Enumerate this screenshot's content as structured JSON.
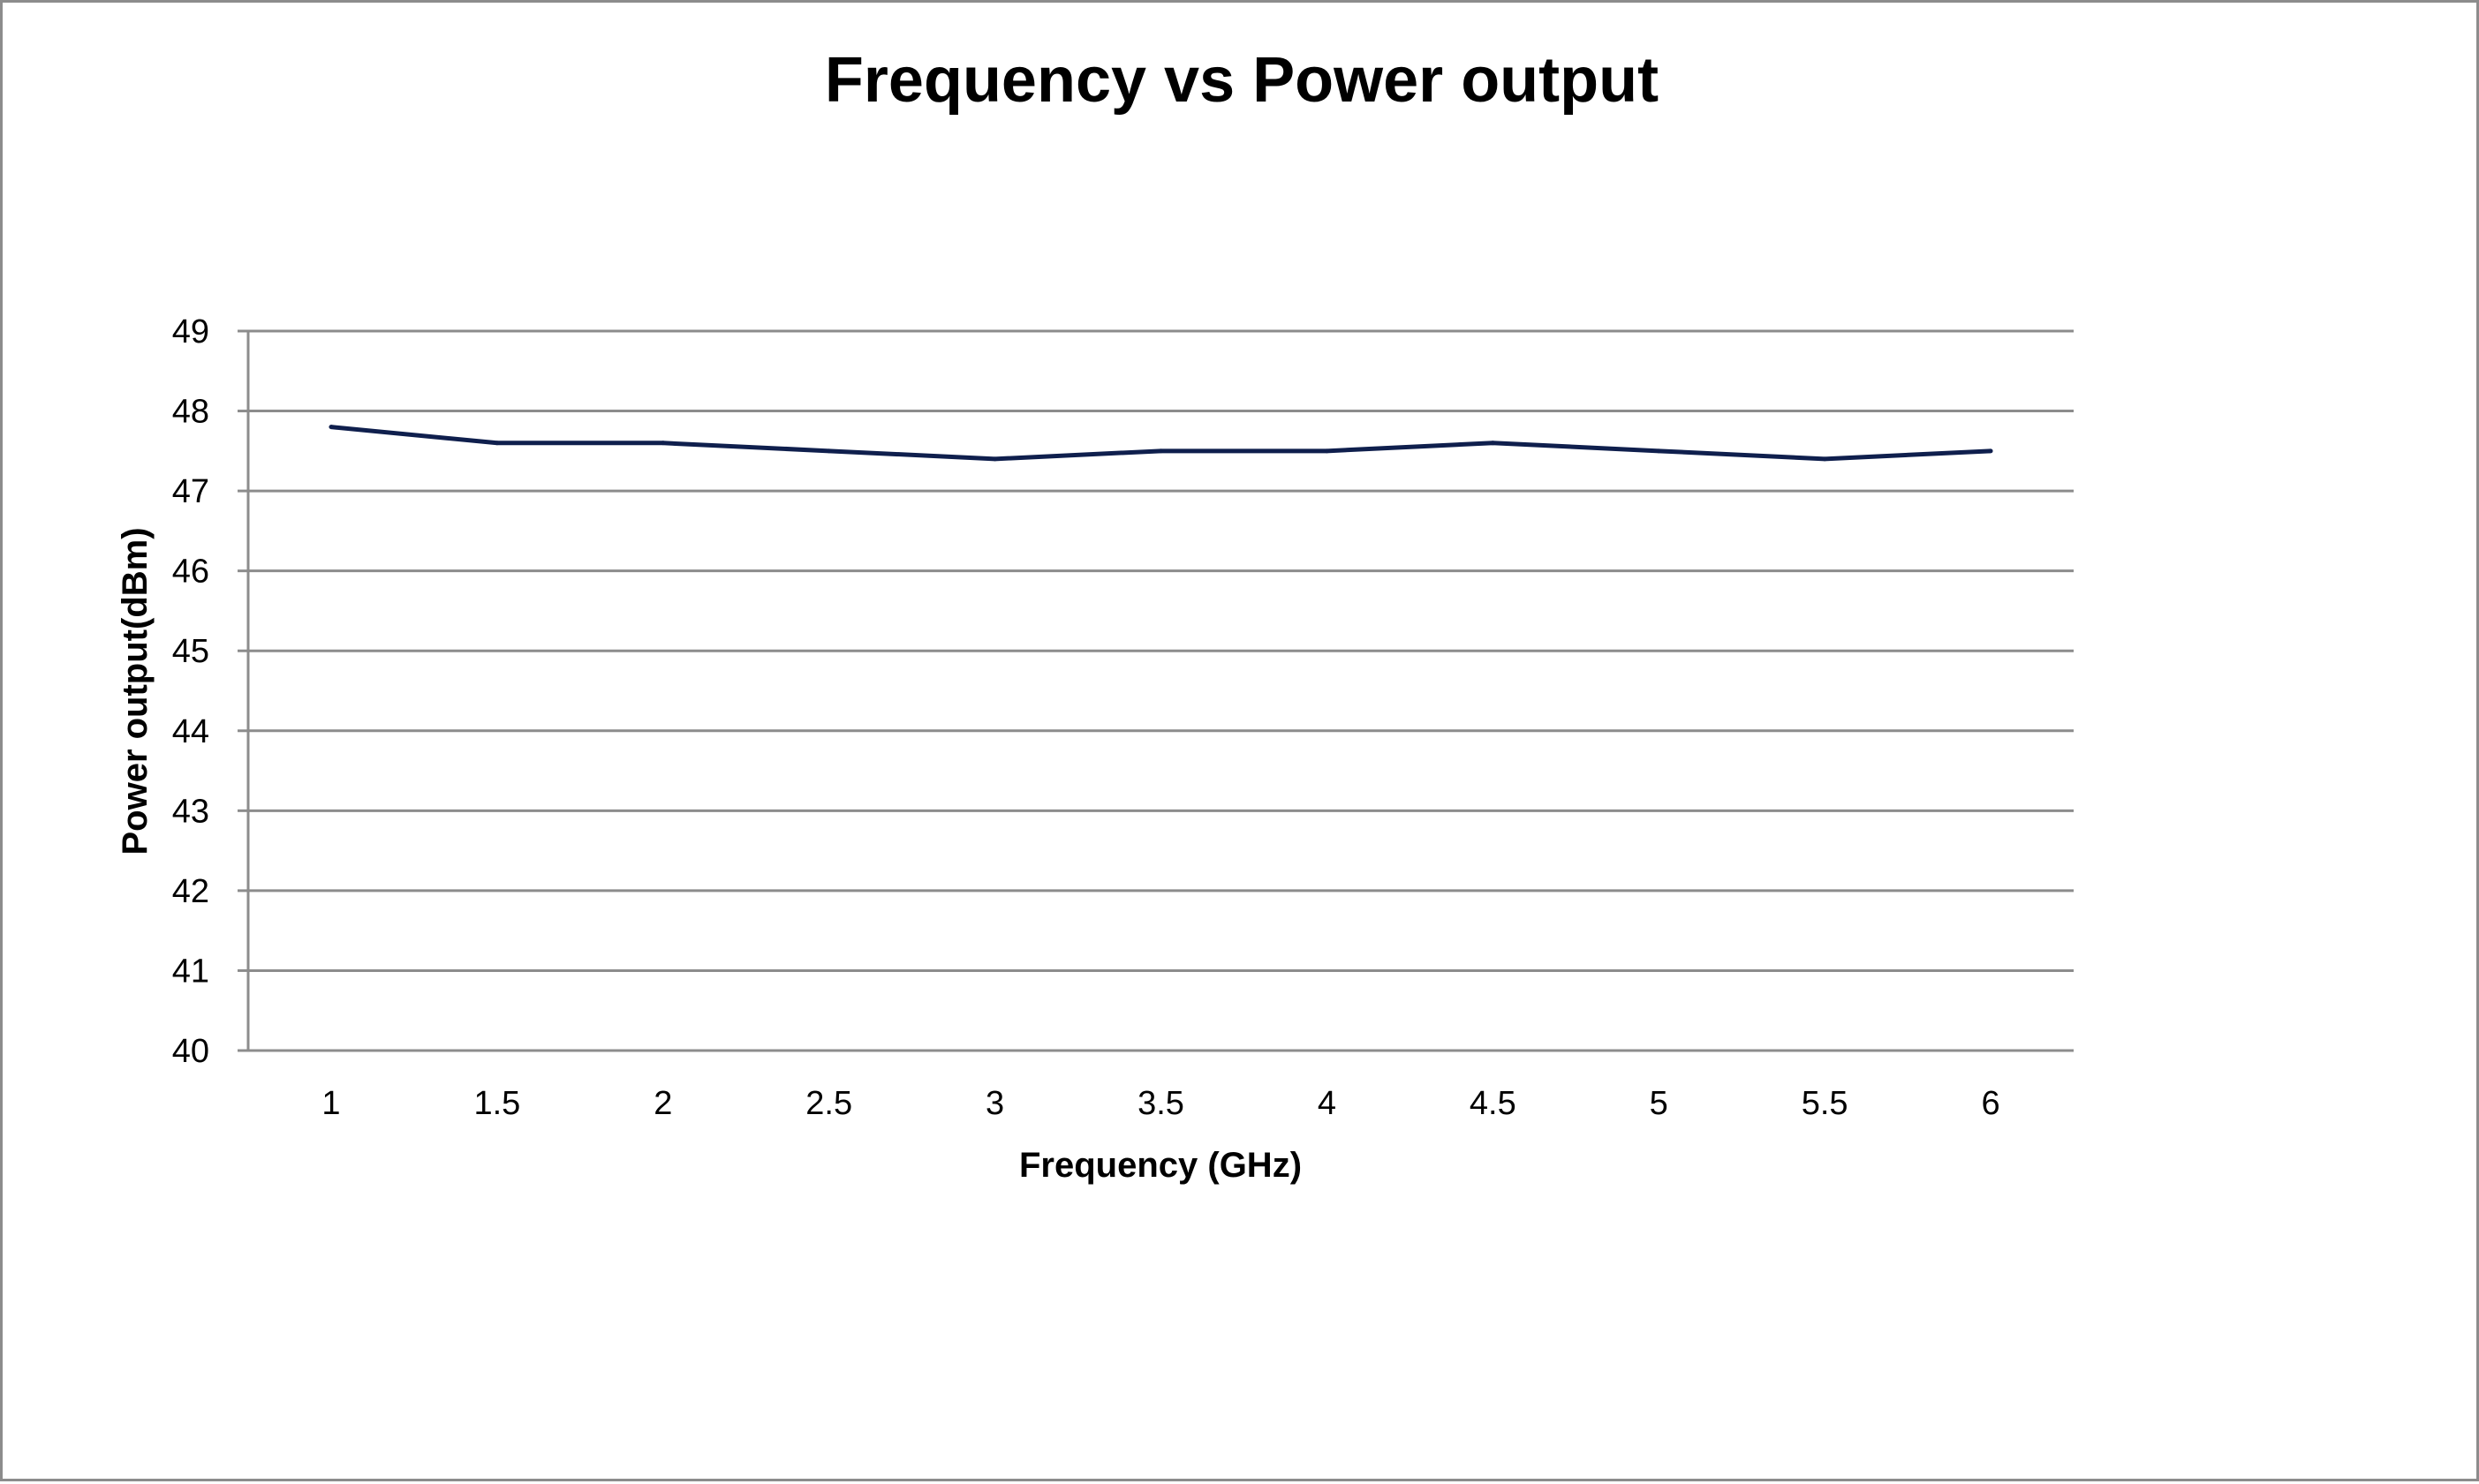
{
  "chart_data": {
    "type": "line",
    "title": "Frequency vs Power output",
    "xlabel": "Frequency (GHz)",
    "ylabel": "Power output(dBm)",
    "categories": [
      "1",
      "1.5",
      "2",
      "2.5",
      "3",
      "3.5",
      "4",
      "4.5",
      "5",
      "5.5",
      "6"
    ],
    "series": [
      {
        "values": [
          47.8,
          47.6,
          47.6,
          47.5,
          47.4,
          47.5,
          47.5,
          47.6,
          47.5,
          47.4,
          47.5
        ]
      }
    ],
    "ylim": [
      40,
      49
    ],
    "yticks": [
      "40",
      "41",
      "42",
      "43",
      "44",
      "45",
      "46",
      "47",
      "48",
      "49"
    ],
    "grid": true,
    "legend": "none",
    "colors": {
      "line": "#0f1f4d",
      "grid": "#8c8c8c",
      "frame": "#8c8c8c"
    }
  }
}
